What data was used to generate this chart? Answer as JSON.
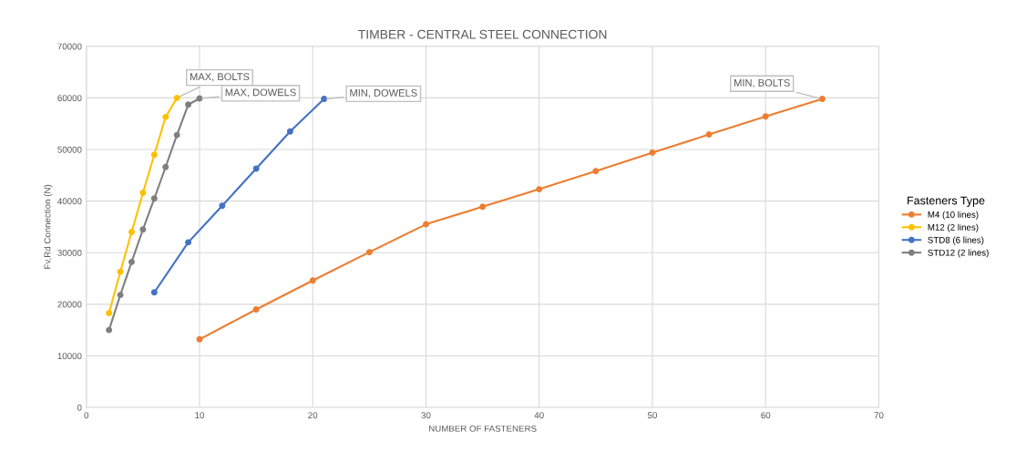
{
  "chart_data": {
    "type": "line",
    "title": "TIMBER - CENTRAL STEEL CONNECTION",
    "xlabel": "NUMBER OF FASTENERS",
    "ylabel": "Fv,Rd Connection (N)",
    "legend_title": "Fasteners Type",
    "series": [
      {
        "name": "M4 (10 lines)",
        "color": "#ed7d31",
        "x": [
          10,
          15,
          20,
          25,
          30,
          35,
          40,
          45,
          50,
          55,
          60,
          65
        ],
        "values": [
          13200,
          19000,
          24600,
          30100,
          35500,
          38900,
          42300,
          45800,
          49400,
          52900,
          56400,
          59800
        ]
      },
      {
        "name": "M12 (2 lines)",
        "color": "#ffc000",
        "x": [
          2,
          3,
          4,
          5,
          6,
          7,
          8
        ],
        "values": [
          18300,
          26300,
          34000,
          41600,
          49000,
          56300,
          60000
        ]
      },
      {
        "name": "STD8 (6 lines)",
        "color": "#4472c4",
        "x": [
          6,
          9,
          12,
          15,
          18,
          21
        ],
        "values": [
          22300,
          32000,
          39100,
          46300,
          53500,
          59800
        ]
      },
      {
        "name": "STD12 (2 lines)",
        "color": "#7f7f7f",
        "x": [
          2,
          3,
          4,
          5,
          6,
          7,
          8,
          9,
          10
        ],
        "values": [
          15000,
          21800,
          28200,
          34500,
          40500,
          46600,
          52800,
          58700,
          59900
        ]
      }
    ],
    "annotations": [
      {
        "text": "MAX, BOLTS",
        "x": 8,
        "y": 60000
      },
      {
        "text": "MAX, DOWELS",
        "x": 10,
        "y": 59900
      },
      {
        "text": "MIN, DOWELS",
        "x": 21,
        "y": 59800
      },
      {
        "text": "MIN, BOLTS",
        "x": 65,
        "y": 59800
      }
    ],
    "xlim": [
      0,
      70
    ],
    "xticks": [
      0,
      10,
      20,
      30,
      40,
      50,
      60,
      70
    ],
    "ylim": [
      0,
      70000
    ],
    "yticks": [
      0,
      10000,
      20000,
      30000,
      40000,
      50000,
      60000,
      70000
    ],
    "grid": true,
    "legend": "right",
    "marker": "circle",
    "line_style": "solid"
  }
}
